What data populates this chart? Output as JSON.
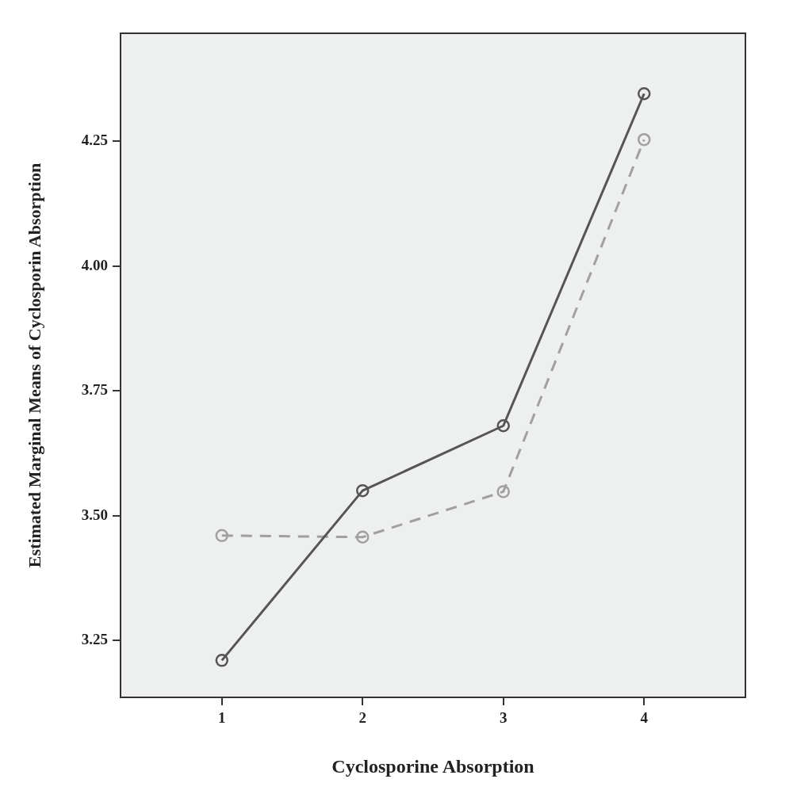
{
  "chart_data": {
    "type": "line",
    "xlabel": "Cyclosporine Absorption",
    "ylabel": "Estimated Marginal Means of Cyclosporin Absorption",
    "x": [
      1,
      2,
      3,
      4
    ],
    "xlim": [
      0.28,
      4.72
    ],
    "xticks": [
      1,
      2,
      3,
      4
    ],
    "ylim": [
      3.136,
      4.466
    ],
    "yticks": [
      {
        "value": 3.25,
        "label": "3.25"
      },
      {
        "value": 3.5,
        "label": "3.50"
      },
      {
        "value": 3.75,
        "label": "3.75"
      },
      {
        "value": 4,
        "label": "4.00"
      },
      {
        "value": 4.25,
        "label": "4.25"
      }
    ],
    "grid": false,
    "legend": false,
    "marker": "circle",
    "series": [
      {
        "color": "#555555",
        "line_style": "solid",
        "values": [
          3.21,
          3.55,
          3.68,
          4.345
        ]
      },
      {
        "color": "#a0a0a0",
        "line_style": "dashed",
        "values": [
          3.46,
          3.457,
          3.548,
          4.253
        ]
      }
    ]
  }
}
